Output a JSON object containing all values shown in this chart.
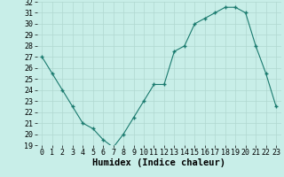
{
  "x": [
    0,
    1,
    2,
    3,
    4,
    5,
    6,
    7,
    8,
    9,
    10,
    11,
    12,
    13,
    14,
    15,
    16,
    17,
    18,
    19,
    20,
    21,
    22,
    23
  ],
  "y": [
    27,
    25.5,
    24,
    22.5,
    21,
    20.5,
    19.5,
    18.8,
    20,
    21.5,
    23,
    24.5,
    24.5,
    27.5,
    28,
    30,
    30.5,
    31,
    31.5,
    31.5,
    31,
    28,
    25.5,
    22.5
  ],
  "xlabel": "Humidex (Indice chaleur)",
  "ylim": [
    19,
    32
  ],
  "xlim": [
    -0.5,
    23.5
  ],
  "yticks": [
    19,
    20,
    21,
    22,
    23,
    24,
    25,
    26,
    27,
    28,
    29,
    30,
    31,
    32
  ],
  "xticks": [
    0,
    1,
    2,
    3,
    4,
    5,
    6,
    7,
    8,
    9,
    10,
    11,
    12,
    13,
    14,
    15,
    16,
    17,
    18,
    19,
    20,
    21,
    22,
    23
  ],
  "line_color": "#1a7a6e",
  "marker_color": "#1a7a6e",
  "bg_color": "#c8eee8",
  "grid_color": "#b0d8d0",
  "xlabel_fontsize": 7.5,
  "tick_fontsize": 6
}
